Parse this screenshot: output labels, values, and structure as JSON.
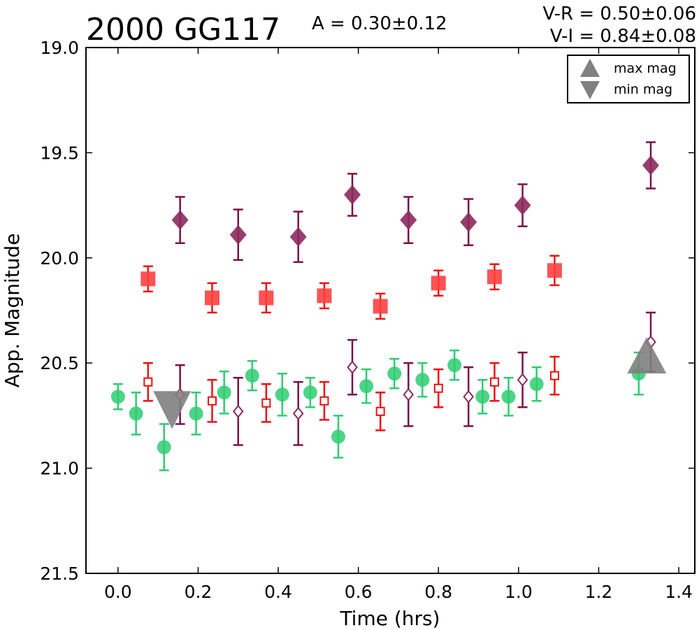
{
  "chart_data": {
    "type": "scatter",
    "title": "2000 GG117",
    "amplitude_text": "A  = 0.30±0.12",
    "color_text": [
      "V-R = 0.50±0.06",
      "V-I  = 0.84±0.08"
    ],
    "xlabel": "Time (hrs)",
    "ylabel": "App. Magnitude",
    "xlim": [
      -0.08,
      1.44
    ],
    "ylim": [
      21.5,
      19.0
    ],
    "y_inverted": true,
    "xticks": [
      "0.0",
      "0.2",
      "0.4",
      "0.6",
      "0.8",
      "1.0",
      "1.2",
      "1.4"
    ],
    "yticks": [
      "19.0",
      "19.5",
      "20.0",
      "20.5",
      "21.0",
      "21.5"
    ],
    "grid": false,
    "legend_position": "top-right",
    "legend": [
      {
        "label": "max mag",
        "symbol": "triangle-up",
        "color": "#808080"
      },
      {
        "label": "min mag",
        "symbol": "triangle-down",
        "color": "#808080"
      }
    ],
    "series": [
      {
        "marker": "circle",
        "filled": true,
        "color": "#2ecc71",
        "errcolor": "#2ecc71",
        "points": [
          [
            0.0,
            20.66,
            0.06
          ],
          [
            0.045,
            20.74,
            0.1
          ],
          [
            0.115,
            20.9,
            0.11
          ],
          [
            0.195,
            20.74,
            0.1
          ],
          [
            0.265,
            20.64,
            0.1
          ],
          [
            0.335,
            20.56,
            0.07
          ],
          [
            0.41,
            20.65,
            0.1
          ],
          [
            0.48,
            20.64,
            0.07
          ],
          [
            0.55,
            20.85,
            0.1
          ],
          [
            0.62,
            20.61,
            0.08
          ],
          [
            0.69,
            20.55,
            0.07
          ],
          [
            0.76,
            20.58,
            0.08
          ],
          [
            0.84,
            20.51,
            0.07
          ],
          [
            0.91,
            20.66,
            0.08
          ],
          [
            0.975,
            20.66,
            0.09
          ],
          [
            1.045,
            20.6,
            0.08
          ],
          [
            1.3,
            20.55,
            0.1
          ]
        ]
      },
      {
        "marker": "square",
        "filled": true,
        "color": "#ff4040",
        "errcolor": "#ee1111",
        "points": [
          [
            0.075,
            20.1,
            0.06
          ],
          [
            0.235,
            20.19,
            0.07
          ],
          [
            0.37,
            20.19,
            0.07
          ],
          [
            0.515,
            20.18,
            0.06
          ],
          [
            0.655,
            20.23,
            0.06
          ],
          [
            0.8,
            20.12,
            0.06
          ],
          [
            0.94,
            20.09,
            0.06
          ],
          [
            1.09,
            20.06,
            0.07
          ]
        ]
      },
      {
        "marker": "square",
        "filled": false,
        "color": "#ee1111",
        "errcolor": "#ee1111",
        "points": [
          [
            0.075,
            20.59,
            0.09
          ],
          [
            0.235,
            20.68,
            0.1
          ],
          [
            0.37,
            20.69,
            0.09
          ],
          [
            0.515,
            20.68,
            0.09
          ],
          [
            0.655,
            20.73,
            0.09
          ],
          [
            0.8,
            20.62,
            0.09
          ],
          [
            0.94,
            20.59,
            0.09
          ],
          [
            1.09,
            20.56,
            0.09
          ]
        ]
      },
      {
        "marker": "diamond",
        "filled": true,
        "color": "#8b2a5e",
        "errcolor": "#7a1145",
        "points": [
          [
            0.155,
            19.82,
            0.11
          ],
          [
            0.3,
            19.89,
            0.12
          ],
          [
            0.45,
            19.9,
            0.12
          ],
          [
            0.585,
            19.7,
            0.1
          ],
          [
            0.725,
            19.82,
            0.11
          ],
          [
            0.875,
            19.83,
            0.11
          ],
          [
            1.01,
            19.75,
            0.1
          ],
          [
            1.33,
            19.56,
            0.11
          ]
        ]
      },
      {
        "marker": "diamond",
        "filled": false,
        "color": "#8b2a5e",
        "errcolor": "#7a1145",
        "points": [
          [
            0.155,
            20.65,
            0.14
          ],
          [
            0.3,
            20.73,
            0.16
          ],
          [
            0.45,
            20.74,
            0.15
          ],
          [
            0.585,
            20.52,
            0.13
          ],
          [
            0.725,
            20.65,
            0.15
          ],
          [
            0.875,
            20.66,
            0.14
          ],
          [
            1.01,
            20.58,
            0.13
          ],
          [
            1.33,
            20.4,
            0.14
          ]
        ]
      }
    ],
    "extrema_markers": [
      {
        "type": "min",
        "x": 0.135,
        "y": 20.72,
        "color": "#808080"
      },
      {
        "type": "max",
        "x": 1.32,
        "y": 20.47,
        "color": "#808080"
      }
    ]
  }
}
